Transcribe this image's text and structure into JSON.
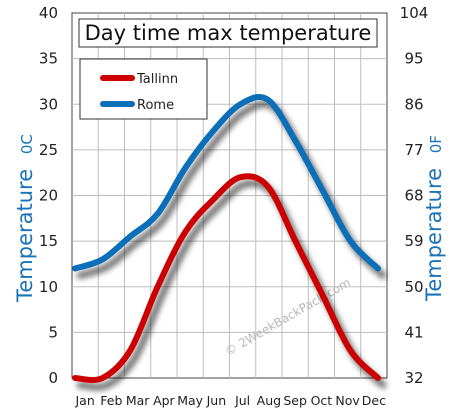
{
  "chart_data": {
    "type": "line",
    "title": "Day time max temperature",
    "categories": [
      "Jan",
      "Feb",
      "Mar",
      "Apr",
      "May",
      "Jun",
      "Jul",
      "Aug",
      "Sep",
      "Oct",
      "Nov",
      "Dec"
    ],
    "series": [
      {
        "name": "Tallinn",
        "color": "#cc0000",
        "values": [
          0,
          0,
          3,
          10,
          16,
          19.5,
          22,
          21,
          15,
          9,
          3,
          0
        ]
      },
      {
        "name": "Rome",
        "color": "#0a6eb8",
        "values": [
          12,
          13,
          15.5,
          18,
          23,
          27,
          30,
          30.5,
          26,
          20.5,
          15,
          12
        ]
      }
    ],
    "ylabel": "Temperature",
    "ylabel_unit": "0C",
    "y2label": "Temperature",
    "y2label_unit": "0F",
    "ylim": [
      0,
      40
    ],
    "yticks": [
      "0",
      "5",
      "10",
      "15",
      "20",
      "25",
      "30",
      "35",
      "40"
    ],
    "y2ticks": [
      "32",
      "41",
      "50",
      "59",
      "68",
      "77",
      "86",
      "95",
      "104"
    ],
    "grid": true,
    "legend_position": "top-left",
    "axis_title_color": "#1a73b8"
  },
  "watermark": "© 2WeekBackPack.com"
}
